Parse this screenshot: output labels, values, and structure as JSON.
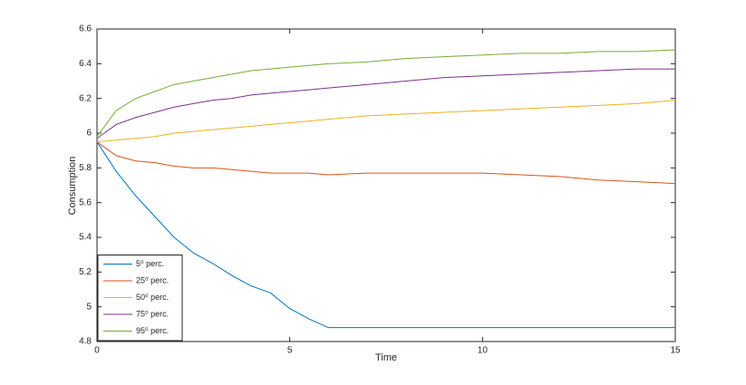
{
  "chart_data": {
    "type": "line",
    "xlabel": "Time",
    "ylabel": "Consumption",
    "x": [
      0,
      0.5,
      1,
      1.5,
      2,
      2.5,
      3,
      3.5,
      4,
      4.5,
      5,
      5.5,
      6,
      7,
      8,
      9,
      10,
      11,
      12,
      13,
      14,
      15
    ],
    "series": [
      {
        "name": "5⁰ perc.",
        "color": "#0072bd",
        "values": [
          5.95,
          5.78,
          5.64,
          5.52,
          5.4,
          5.31,
          5.25,
          5.18,
          5.12,
          5.08,
          4.99,
          4.93,
          4.88,
          4.88,
          4.88,
          4.88,
          4.88,
          4.88,
          4.88,
          4.88,
          4.88,
          4.88
        ]
      },
      {
        "name": "25⁰ perc.",
        "color": "#d95319",
        "values": [
          5.95,
          5.87,
          5.84,
          5.83,
          5.81,
          5.8,
          5.8,
          5.79,
          5.78,
          5.77,
          5.77,
          5.77,
          5.76,
          5.77,
          5.77,
          5.77,
          5.77,
          5.76,
          5.75,
          5.73,
          5.72,
          5.71
        ]
      },
      {
        "name": "50⁰ perc.",
        "color": "#edb120",
        "values": [
          5.95,
          5.96,
          5.97,
          5.98,
          6.0,
          6.01,
          6.02,
          6.03,
          6.04,
          6.05,
          6.06,
          6.07,
          6.08,
          6.1,
          6.11,
          6.12,
          6.13,
          6.14,
          6.15,
          6.16,
          6.17,
          6.19
        ]
      },
      {
        "name": "75⁰ perc.",
        "color": "#7e2f8e",
        "values": [
          5.97,
          6.05,
          6.09,
          6.12,
          6.15,
          6.17,
          6.19,
          6.2,
          6.22,
          6.23,
          6.24,
          6.25,
          6.26,
          6.28,
          6.3,
          6.32,
          6.33,
          6.34,
          6.35,
          6.36,
          6.37,
          6.37
        ]
      },
      {
        "name": "95⁰ perc.",
        "color": "#77ac30",
        "values": [
          5.98,
          6.13,
          6.2,
          6.24,
          6.28,
          6.3,
          6.32,
          6.34,
          6.36,
          6.37,
          6.38,
          6.39,
          6.4,
          6.41,
          6.43,
          6.44,
          6.45,
          6.46,
          6.46,
          6.47,
          6.47,
          6.48
        ]
      }
    ],
    "xlim": [
      0,
      15
    ],
    "xticks": [
      0,
      5,
      10,
      15
    ],
    "ylim": [
      4.8,
      6.6
    ],
    "yticks": [
      4.8,
      5,
      5.2,
      5.4,
      5.6,
      5.8,
      6,
      6.2,
      6.4,
      6.6
    ],
    "grid": false,
    "legend": "lower left"
  }
}
